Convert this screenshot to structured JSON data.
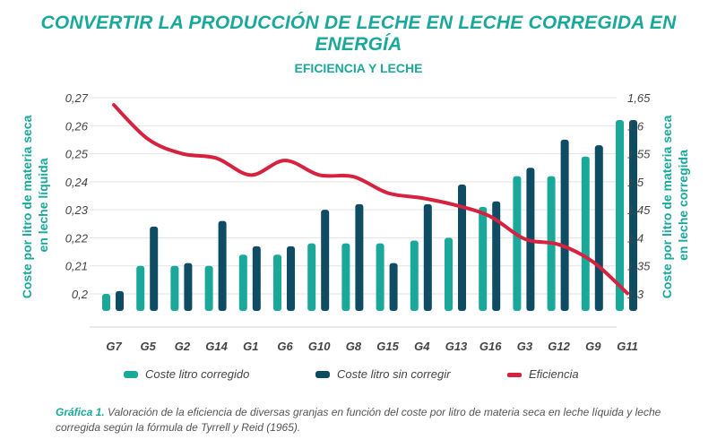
{
  "page": {
    "title": "CONVERTIR LA PRODUCCIÓN DE LECHE EN LECHE CORREGIDA EN ENERGÍA",
    "caption_label": "Gráfica 1.",
    "caption_text": " Valoración de la eficiencia de diversas granjas en función del coste por litro de materia seca en leche líquida y leche corregida según la fórmula de Tyrrell y Reid (1965)."
  },
  "chart_data": {
    "type": "bar",
    "title": "EFICIENCIA Y LECHE",
    "ylabel": "Coste por litro de materia seca en leche líquida",
    "y2label": "Coste por litro de materia seca en leche corregida",
    "categories": [
      "G7",
      "G5",
      "G2",
      "G14",
      "G1",
      "G6",
      "G10",
      "G8",
      "G15",
      "G4",
      "G13",
      "G16",
      "G3",
      "G12",
      "G9",
      "G11"
    ],
    "y_ticks": [
      "0,2",
      "0,21",
      "0,22",
      "0,23",
      "0,24",
      "0,25",
      "0,26",
      "0,27"
    ],
    "y_tick_values": [
      0.2,
      0.21,
      0.22,
      0.23,
      0.24,
      0.25,
      0.26,
      0.27
    ],
    "y2_ticks": [
      "1,3",
      "1,35",
      "1,4",
      "1,45",
      "1,5",
      "1,55",
      "1,6",
      "1,65"
    ],
    "y2_tick_values": [
      1.3,
      1.35,
      1.4,
      1.45,
      1.5,
      1.55,
      1.6,
      1.65
    ],
    "ylim": [
      0.2,
      0.27
    ],
    "y2lim": [
      1.3,
      1.65
    ],
    "series": [
      {
        "name": "Coste litro corregido",
        "color": "#1aa89a",
        "values": [
          0.2,
          0.21,
          0.21,
          0.21,
          0.214,
          0.214,
          0.218,
          0.218,
          0.218,
          0.219,
          0.22,
          0.231,
          0.242,
          0.242,
          0.249,
          0.262
        ]
      },
      {
        "name": "Coste litro sin corregir",
        "color": "#0e4c63",
        "values": [
          0.201,
          0.224,
          0.211,
          0.226,
          0.217,
          0.217,
          0.23,
          0.232,
          0.211,
          0.232,
          0.239,
          0.233,
          0.245,
          0.255,
          0.253,
          0.262
        ]
      },
      {
        "name": "Eficiencia",
        "type": "line",
        "axis": "right",
        "color": "#d6213f",
        "values": [
          1.637,
          1.576,
          1.55,
          1.542,
          1.512,
          1.538,
          1.512,
          1.509,
          1.48,
          1.471,
          1.458,
          1.438,
          1.398,
          1.388,
          1.357,
          1.301
        ]
      }
    ],
    "legend_position": "bottom"
  }
}
